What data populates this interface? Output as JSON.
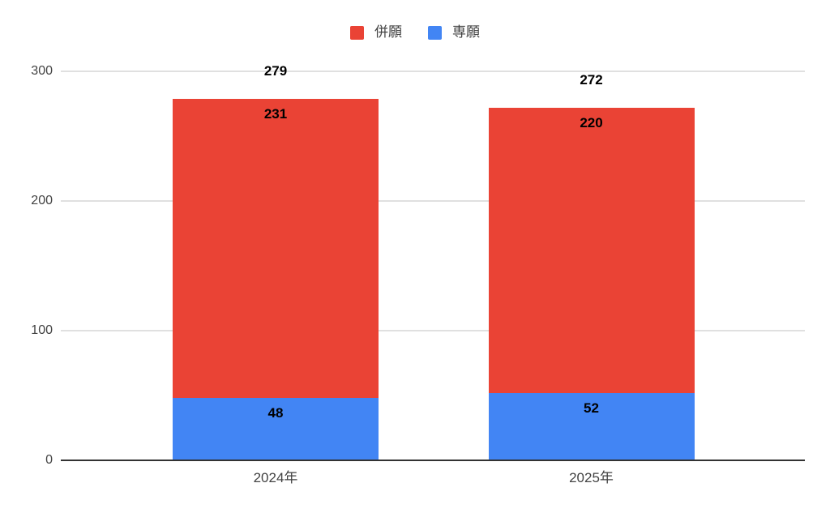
{
  "chart_data": {
    "type": "bar",
    "stacked": true,
    "title": "",
    "categories": [
      "2024年",
      "2025年"
    ],
    "series": [
      {
        "name": "併願",
        "color": "#EA4335",
        "values": [
          231,
          220
        ]
      },
      {
        "name": "専願",
        "color": "#4285F4",
        "values": [
          48,
          52
        ]
      }
    ],
    "stack_order_bottom_to_top": [
      "専願",
      "併願"
    ],
    "totals": [
      279,
      272
    ],
    "yticks": [
      0,
      100,
      200,
      300
    ],
    "ylim": [
      0,
      300
    ],
    "xlabel": "",
    "ylabel": "",
    "grid": true,
    "legend_position": "top"
  },
  "colors": {
    "background": "#ffffff",
    "gridline": "#e0e0e0",
    "axis_line": "#333333",
    "tick_label_text": "#424242",
    "value_label_text": "#000000",
    "legend_text": "#424242"
  }
}
